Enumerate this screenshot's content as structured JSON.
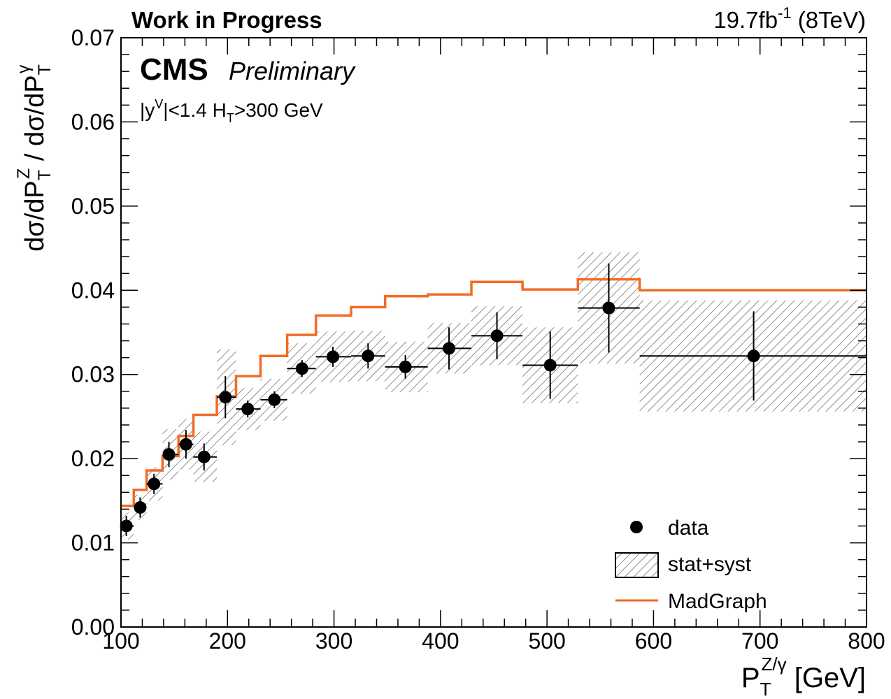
{
  "header": {
    "left_note": "Work in Progress",
    "lumi_main": "19.7fb",
    "lumi_sup": "-1",
    "lumi_energy": " (8TeV)"
  },
  "labels": {
    "experiment": "CMS",
    "status": "Preliminary",
    "cut_a": "|y",
    "cut_a_sup": "V",
    "cut_b": "|<1.4 H",
    "cut_b_sub": "T",
    "cut_c": ">300 GeV"
  },
  "colors": {
    "madgraph": "#f26c24",
    "data": "#000000",
    "band_hatch": "#555555",
    "frame": "#000000"
  },
  "chart_data": {
    "type": "line",
    "title": "",
    "xlabel": {
      "base": "P",
      "sub": "T",
      "sup": "Z/γ",
      "unit": " [GeV]"
    },
    "ylabel": {
      "p1": "dσ/dP",
      "p1_sub": "T",
      "p1_sup": "Z",
      "p2": " / dσ/dP",
      "p2_sub": "T",
      "p2_sup": "γ"
    },
    "xlim": [
      100,
      800
    ],
    "ylim": [
      0.0,
      0.07
    ],
    "x_ticks": [
      100,
      200,
      300,
      400,
      500,
      600,
      700,
      800
    ],
    "x_tick_labels": [
      "100",
      "200",
      "300",
      "400",
      "500",
      "600",
      "700",
      "800"
    ],
    "y_ticks": [
      0.0,
      0.01,
      0.02,
      0.03,
      0.04,
      0.05,
      0.06,
      0.07
    ],
    "y_tick_labels": [
      "0.00",
      "0.01",
      "0.02",
      "0.03",
      "0.04",
      "0.05",
      "0.06",
      "0.07"
    ],
    "grid": false,
    "legend": {
      "placement": "bottom-right",
      "entries": [
        {
          "key": "data",
          "label": "data"
        },
        {
          "key": "band",
          "label": "stat+syst"
        },
        {
          "key": "madgraph",
          "label": "MadGraph"
        }
      ]
    },
    "bins": [
      {
        "lo": 100,
        "hi": 112,
        "x": 105,
        "y": 0.012,
        "stat": 0.0012,
        "band": 0.0016,
        "mg": 0.0144
      },
      {
        "lo": 112,
        "hi": 124,
        "x": 118,
        "y": 0.0142,
        "stat": 0.0012,
        "band": 0.0015,
        "mg": 0.0163
      },
      {
        "lo": 124,
        "hi": 139,
        "x": 131,
        "y": 0.017,
        "stat": 0.0012,
        "band": 0.002,
        "mg": 0.0186
      },
      {
        "lo": 139,
        "hi": 154,
        "x": 145,
        "y": 0.0205,
        "stat": 0.0015,
        "band": 0.003,
        "mg": 0.0203
      },
      {
        "lo": 154,
        "hi": 168,
        "x": 161,
        "y": 0.0217,
        "stat": 0.0017,
        "band": 0.003,
        "mg": 0.0227
      },
      {
        "lo": 168,
        "hi": 190,
        "x": 178,
        "y": 0.0202,
        "stat": 0.0016,
        "band": 0.003,
        "mg": 0.0252
      },
      {
        "lo": 190,
        "hi": 208,
        "x": 198,
        "y": 0.0273,
        "stat": 0.0025,
        "band": 0.0057,
        "mg": 0.0274
      },
      {
        "lo": 208,
        "hi": 231,
        "x": 219,
        "y": 0.0259,
        "stat": 0.001,
        "band": 0.0025,
        "mg": 0.0298
      },
      {
        "lo": 231,
        "hi": 256,
        "x": 244,
        "y": 0.027,
        "stat": 0.001,
        "band": 0.0025,
        "mg": 0.0322
      },
      {
        "lo": 256,
        "hi": 283,
        "x": 270,
        "y": 0.0307,
        "stat": 0.001,
        "band": 0.003,
        "mg": 0.0347
      },
      {
        "lo": 283,
        "hi": 316,
        "x": 299,
        "y": 0.0321,
        "stat": 0.0012,
        "band": 0.003,
        "mg": 0.037
      },
      {
        "lo": 316,
        "hi": 348,
        "x": 332,
        "y": 0.0322,
        "stat": 0.0015,
        "band": 0.003,
        "mg": 0.038
      },
      {
        "lo": 348,
        "hi": 388,
        "x": 367,
        "y": 0.0309,
        "stat": 0.0014,
        "band": 0.003,
        "mg": 0.0393
      },
      {
        "lo": 388,
        "hi": 429,
        "x": 408,
        "y": 0.0331,
        "stat": 0.0025,
        "band": 0.003,
        "mg": 0.0395
      },
      {
        "lo": 429,
        "hi": 477,
        "x": 453,
        "y": 0.0346,
        "stat": 0.0028,
        "band": 0.0035,
        "mg": 0.041
      },
      {
        "lo": 477,
        "hi": 529,
        "x": 503,
        "y": 0.0311,
        "stat": 0.004,
        "band": 0.0045,
        "mg": 0.0401
      },
      {
        "lo": 529,
        "hi": 587,
        "x": 558,
        "y": 0.0379,
        "stat": 0.0053,
        "band": 0.0066,
        "mg": 0.0413
      },
      {
        "lo": 587,
        "hi": 800,
        "x": 694,
        "y": 0.0322,
        "stat": 0.0053,
        "band": 0.0066,
        "mg": 0.04
      }
    ]
  }
}
